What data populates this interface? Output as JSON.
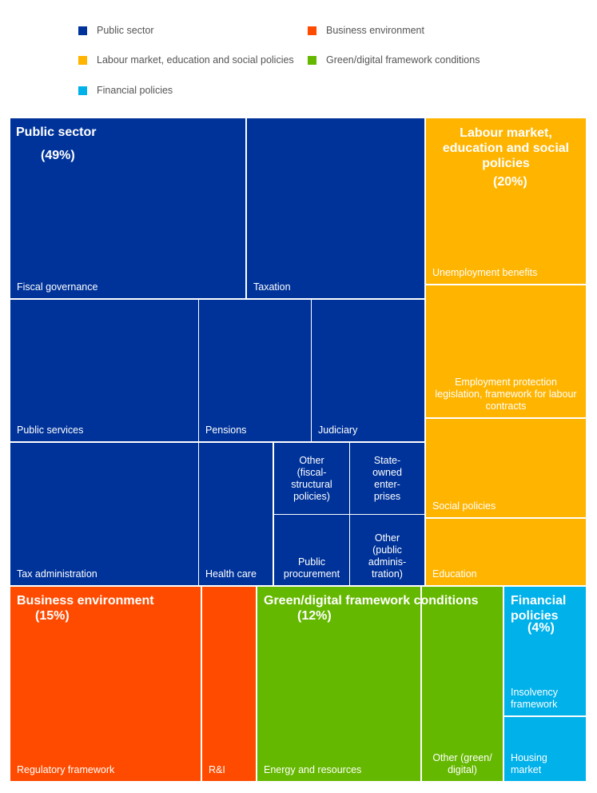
{
  "chart_data": {
    "type": "treemap",
    "title": "",
    "legend": [
      {
        "name": "Public sector",
        "color": "#003399"
      },
      {
        "name": "Business environment",
        "color": "#FF4B00"
      },
      {
        "name": "Labour market, education and social policies",
        "color": "#FFB400"
      },
      {
        "name": "Green/digital framework conditions",
        "color": "#65B800"
      },
      {
        "name": "Financial policies",
        "color": "#00B1EA"
      }
    ],
    "legend_placement": "top",
    "groups": [
      {
        "name": "Public sector",
        "share_label": "(49%)",
        "share": 49,
        "color": "#003399",
        "children": [
          {
            "name": "Fiscal governance"
          },
          {
            "name": "Taxation"
          },
          {
            "name": "Public services"
          },
          {
            "name": "Pensions"
          },
          {
            "name": "Judiciary"
          },
          {
            "name": "Tax administration"
          },
          {
            "name": "Health care"
          },
          {
            "name": "Other (fiscal-structural policies)"
          },
          {
            "name": "State-owned enterprises"
          },
          {
            "name": "Public procurement"
          },
          {
            "name": "Other (public administration)"
          }
        ]
      },
      {
        "name": "Labour market, education and social policies",
        "share_label": "(20%)",
        "share": 20,
        "color": "#FFB400",
        "children": [
          {
            "name": "Unemployment benefits"
          },
          {
            "name": "Employment protection legislation, framework for labour contracts"
          },
          {
            "name": "Social policies"
          },
          {
            "name": "Education"
          }
        ]
      },
      {
        "name": "Business environment",
        "share_label": "(15%)",
        "share": 15,
        "color": "#FF4B00",
        "children": [
          {
            "name": "Regulatory framework"
          },
          {
            "name": "R&I"
          }
        ]
      },
      {
        "name": "Green/digital framework conditions",
        "share_label": "(12%)",
        "share": 12,
        "color": "#65B800",
        "children": [
          {
            "name": "Energy and resources"
          },
          {
            "name": "Other (green/ digital)"
          }
        ]
      },
      {
        "name": "Financial policies",
        "share_label": "(4%)",
        "share": 4,
        "color": "#00B1EA",
        "children": [
          {
            "name": "Insolvency framework"
          },
          {
            "name": "Housing market"
          }
        ]
      }
    ]
  }
}
